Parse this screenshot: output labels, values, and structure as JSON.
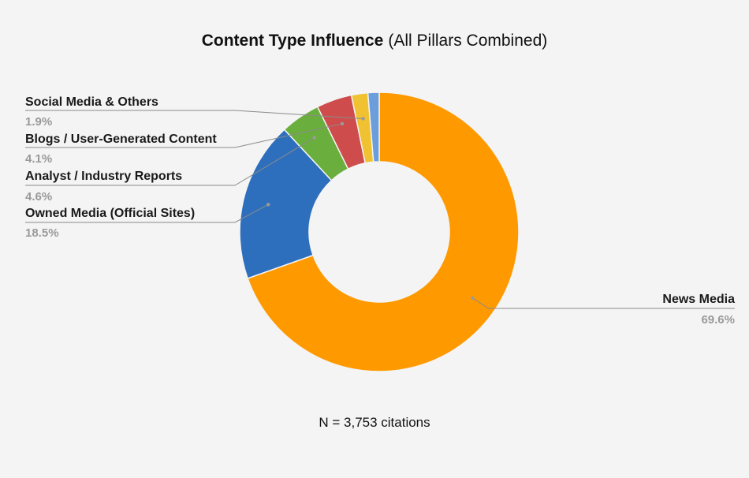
{
  "chart_data": {
    "type": "pie",
    "title": "Content Type Influence",
    "subtitle": "(All Pillars Combined)",
    "footnote": "N = 3,753 citations",
    "slices": [
      {
        "label": "News Media",
        "value": 69.6,
        "display": "69.6%",
        "color": "#ff9900"
      },
      {
        "label": "Owned Media (Official Sites)",
        "value": 18.5,
        "display": "18.5%",
        "color": "#2e6fbd"
      },
      {
        "label": "Analyst / Industry Reports",
        "value": 4.6,
        "display": "4.6%",
        "color": "#6aaf3d"
      },
      {
        "label": "Blogs / User-Generated Content",
        "value": 4.1,
        "display": "4.1%",
        "color": "#cf4c4c"
      },
      {
        "label": "Social Media & Others",
        "value": 1.9,
        "display": "1.9%",
        "color": "#f0c131"
      },
      {
        "label": "",
        "value": 1.3,
        "display": "",
        "color": "#6d9edc"
      }
    ],
    "donut": true,
    "legend": "none"
  }
}
